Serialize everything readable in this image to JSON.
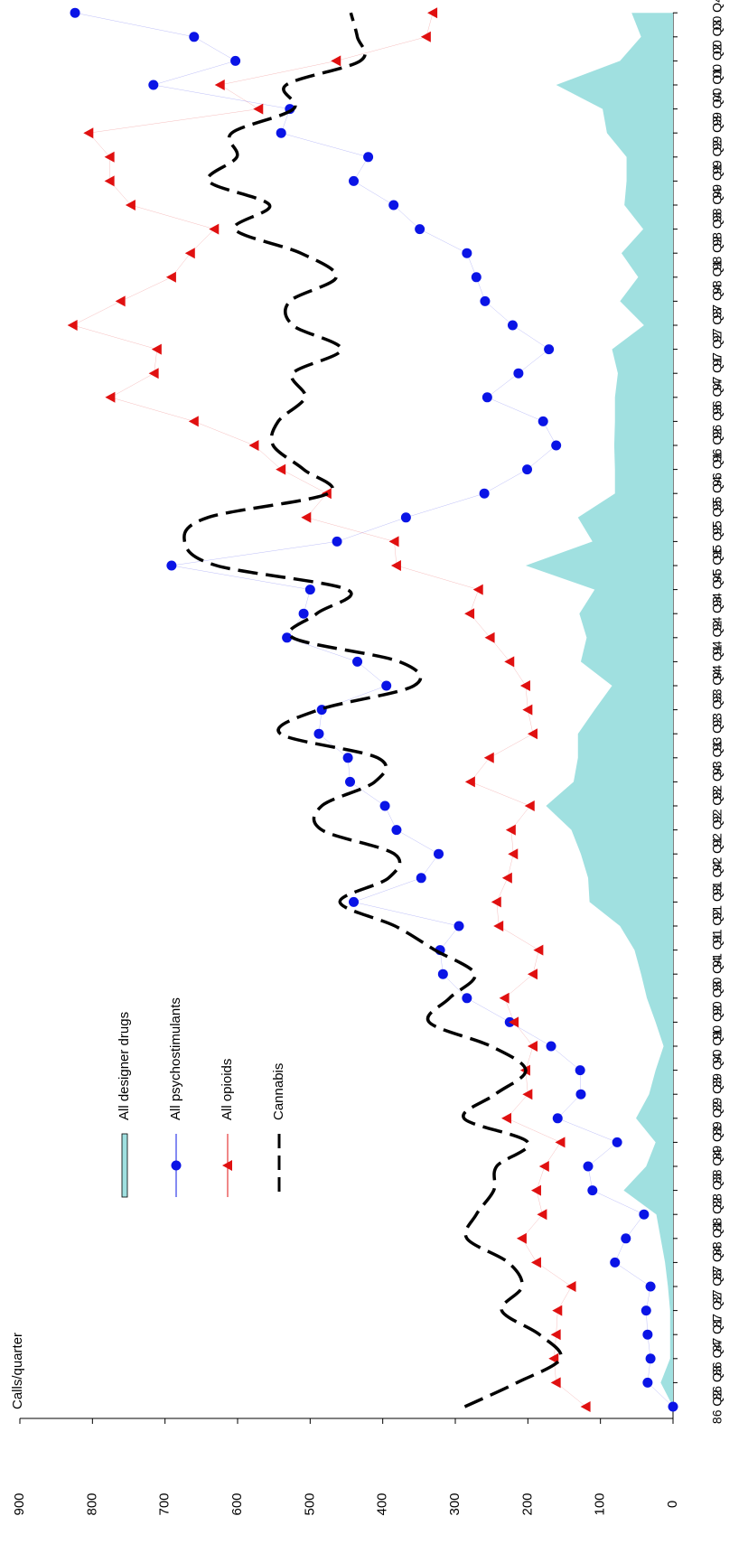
{
  "chart_data": {
    "type": "line",
    "y_label": "Calls/quarter",
    "categories": [
      "86 Q2",
      "86 Q3",
      "86 Q4",
      "87 Q1",
      "87 Q2",
      "87 Q3",
      "87 Q4",
      "88 Q1",
      "88 Q2",
      "88 Q3",
      "88 Q4",
      "89 Q1",
      "89 Q2",
      "89 Q3",
      "89 Q4",
      "90 Q1",
      "90 Q2",
      "90 Q3",
      "90 Q4",
      "91 Q1",
      "91 Q2",
      "91 Q3",
      "91 Q4",
      "92 Q1",
      "92 Q2",
      "92 Q3",
      "92 Q4",
      "93 Q1",
      "93 Q2",
      "93 Q3",
      "93 Q4",
      "94 Q1",
      "94 Q2",
      "94 Q3",
      "94 Q4",
      "95 Q1",
      "95 Q2",
      "95 Q3",
      "95 Q4",
      "96 Q1",
      "96 Q2",
      "96 Q3",
      "96 Q4",
      "97 Q1",
      "97 Q2",
      "97 Q3",
      "97 Q4",
      "98 Q1",
      "98 Q2",
      "98 Q3",
      "98 Q4",
      "99 Q1",
      "99 Q2",
      "99 Q3",
      "99 Q4",
      "00 Q1",
      "00 Q2",
      "00 Q3",
      "00 Q4"
    ],
    "ylim": [
      0,
      900
    ],
    "yticks": [
      0,
      100,
      200,
      300,
      400,
      500,
      600,
      700,
      800,
      900
    ],
    "orientation": "rotated",
    "series": [
      {
        "name": "All designer drugs",
        "kind": "area",
        "color": "#a0e0e0",
        "values": [
          0,
          17,
          4,
          4,
          4,
          7,
          11,
          17,
          23,
          68,
          37,
          24,
          51,
          33,
          24,
          13,
          24,
          36,
          44,
          53,
          73,
          115,
          117,
          127,
          140,
          175,
          137,
          131,
          131,
          108,
          84,
          127,
          119,
          129,
          108,
          203,
          111,
          131,
          80,
          80,
          81,
          80,
          80,
          76,
          84,
          40,
          73,
          48,
          71,
          41,
          67,
          64,
          64,
          91,
          97,
          161,
          73,
          44,
          57
        ]
      },
      {
        "name": "All  psychostimulants",
        "kind": "circle",
        "color": "#0a14e6",
        "values": [
          0,
          35,
          31,
          35,
          37,
          31,
          80,
          65,
          40,
          111,
          117,
          77,
          159,
          127,
          128,
          168,
          225,
          284,
          317,
          321,
          295,
          440,
          347,
          323,
          381,
          397,
          445,
          448,
          488,
          484,
          395,
          435,
          532,
          509,
          500,
          691,
          463,
          368,
          260,
          201,
          161,
          179,
          256,
          213,
          171,
          221,
          259,
          271,
          284,
          349,
          385,
          440,
          420,
          540,
          528,
          716,
          603,
          660,
          824
        ]
      },
      {
        "name": "All opioids",
        "kind": "triangle",
        "color": "#e01010",
        "values": [
          120,
          161,
          164,
          161,
          159,
          140,
          188,
          208,
          180,
          188,
          177,
          155,
          229,
          200,
          203,
          193,
          219,
          232,
          193,
          185,
          240,
          243,
          228,
          220,
          223,
          197,
          279,
          253,
          193,
          200,
          203,
          225,
          252,
          280,
          268,
          381,
          384,
          505,
          477,
          540,
          577,
          660,
          775,
          715,
          711,
          827,
          761,
          691,
          665,
          632,
          747,
          776,
          776,
          805,
          571,
          624,
          464,
          340,
          331
        ]
      },
      {
        "name": "Cannabis",
        "kind": "dashed",
        "color": "#000000",
        "values": [
          287,
          215,
          155,
          184,
          236,
          208,
          227,
          284,
          271,
          247,
          243,
          200,
          288,
          245,
          203,
          251,
          336,
          308,
          273,
          328,
          383,
          459,
          392,
          384,
          484,
          484,
          411,
          407,
          541,
          488,
          357,
          377,
          524,
          491,
          449,
          629,
          673,
          641,
          475,
          509,
          551,
          544,
          507,
          524,
          457,
          524,
          528,
          464,
          513,
          604,
          556,
          640,
          601,
          608,
          523,
          533,
          431,
          435,
          444
        ]
      }
    ]
  }
}
